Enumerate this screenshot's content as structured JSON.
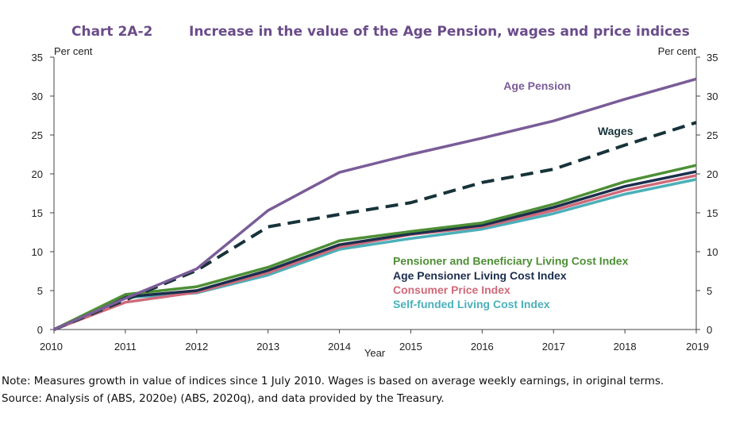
{
  "chart_data": {
    "type": "line",
    "chart_id": "Chart 2A-2",
    "title": "Increase in the value of the Age Pension, wages and price indices",
    "xlabel": "Year",
    "ylabel_left": "Per cent",
    "ylabel_right": "Per cent",
    "x": [
      2010,
      2011,
      2012,
      2013,
      2014,
      2015,
      2016,
      2017,
      2018,
      2019
    ],
    "x_tick_labels": [
      "2010",
      "2011",
      "2012",
      "2013",
      "2014",
      "2015",
      "2016",
      "2017",
      "2018",
      "2019"
    ],
    "ylim": [
      0,
      35
    ],
    "y_ticks": [
      0,
      5,
      10,
      15,
      20,
      25,
      30,
      35
    ],
    "y_tick_labels": [
      "0",
      "5",
      "10",
      "15",
      "20",
      "25",
      "30",
      "35"
    ],
    "grid": false,
    "series": [
      {
        "name": "Age Pension",
        "color": "#7a5c98",
        "style": "solid",
        "values": [
          0,
          4.0,
          7.8,
          15.3,
          20.2,
          22.5,
          24.6,
          26.8,
          29.6,
          32.2
        ]
      },
      {
        "name": "Wages",
        "color": "#17333a",
        "style": "dashed",
        "values": [
          0,
          3.8,
          7.6,
          13.2,
          14.8,
          16.3,
          18.9,
          20.6,
          23.7,
          26.6
        ]
      },
      {
        "name": "Pensioner and Beneficiary Living Cost Index",
        "color": "#4e8f36",
        "style": "solid",
        "values": [
          0,
          4.5,
          5.5,
          8.0,
          11.4,
          12.6,
          13.7,
          16.1,
          19.0,
          21.1
        ]
      },
      {
        "name": "Age Pensioner Living Cost Index",
        "color": "#1b2e4d",
        "style": "solid",
        "values": [
          0,
          4.2,
          5.0,
          7.6,
          10.9,
          12.3,
          13.4,
          15.7,
          18.4,
          20.3
        ]
      },
      {
        "name": "Consumer Price Index",
        "color": "#cf6a7a",
        "style": "solid",
        "values": [
          0,
          3.5,
          4.8,
          7.3,
          10.6,
          12.2,
          13.2,
          15.3,
          17.9,
          19.8
        ]
      },
      {
        "name": "Self-funded Living Cost Index",
        "color": "#4bb0b9",
        "style": "solid",
        "values": [
          0,
          4.1,
          4.7,
          7.0,
          10.3,
          11.7,
          12.9,
          14.9,
          17.4,
          19.3
        ]
      }
    ],
    "labels": [
      {
        "text": "Age Pension",
        "color": "#7a5c98",
        "anchor_x": 2016.3,
        "anchor_y": 30.8
      },
      {
        "text": "Wages",
        "color": "#17333a",
        "anchor_x": 2017.62,
        "anchor_y": 25.0
      },
      {
        "text": "Pensioner and Beneficiary Living Cost Index",
        "color": "#4e8f36",
        "anchor_x": 2014.75,
        "anchor_y": 8.3
      },
      {
        "text": "Age Pensioner Living Cost Index",
        "color": "#1b2e4d",
        "anchor_x": 2014.75,
        "anchor_y": 6.45
      },
      {
        "text": "Consumer Price Index",
        "color": "#cf6a7a",
        "anchor_x": 2014.75,
        "anchor_y": 4.6
      },
      {
        "text": "Self-funded Living Cost Index",
        "color": "#4bb0b9",
        "anchor_x": 2014.75,
        "anchor_y": 2.75
      }
    ],
    "title_color": "#6b4c8a"
  },
  "notes": {
    "line1": "Note: Measures growth in value of indices since 1 July 2010. Wages is based on average weekly earnings, in original terms.",
    "line2": "Source: Analysis of (ABS, 2020e) (ABS, 2020q), and data provided by the Treasury."
  }
}
